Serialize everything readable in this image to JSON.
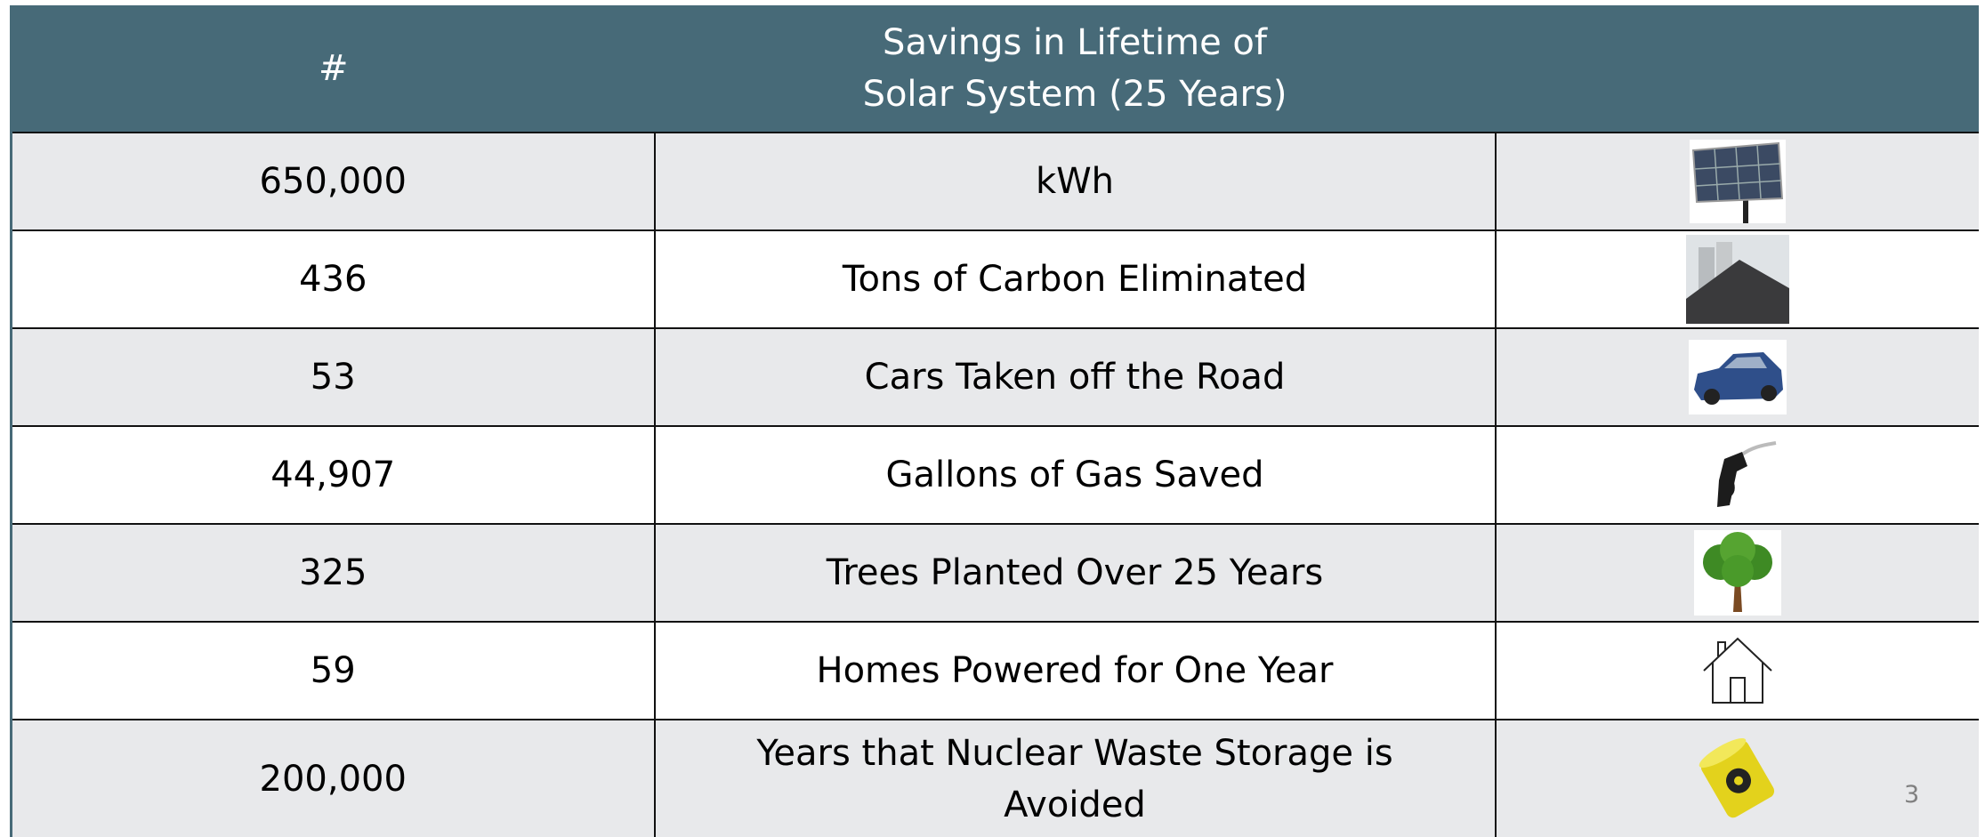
{
  "table": {
    "header": [
      "#",
      "Savings in Lifetime of\nSolar System (25 Years)"
    ],
    "rows": [
      [
        "650,000",
        "kWh"
      ],
      [
        "436",
        "Tons of Carbon Eliminated"
      ],
      [
        "53",
        "Cars Taken off the Road"
      ],
      [
        "44,907",
        "Gallons of Gas Saved"
      ],
      [
        "325",
        "Trees Planted Over 25 Years"
      ],
      [
        "59",
        "Homes Powered for One Year"
      ],
      [
        "200,000",
        "Years that Nuclear Waste Storage is Avoided"
      ]
    ]
  },
  "page_number": "3"
}
